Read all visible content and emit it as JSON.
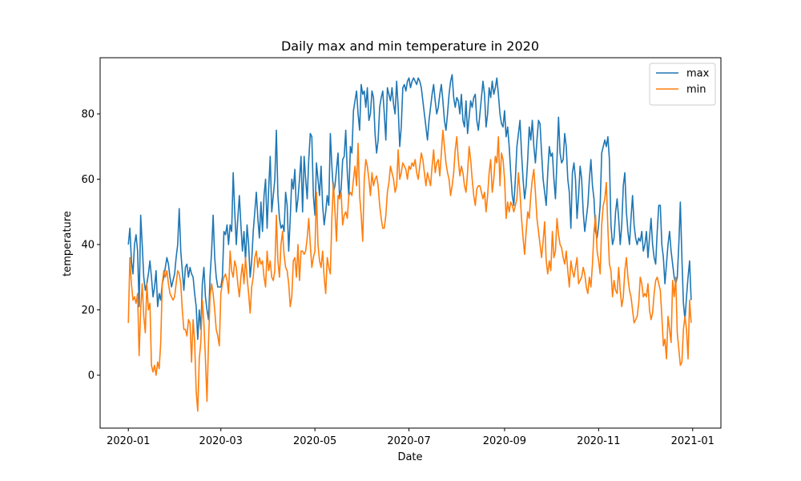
{
  "chart_data": {
    "type": "line",
    "title": "Daily max and min temperature in 2020",
    "xlabel": "Date",
    "ylabel": "temperature",
    "legend": "upper right",
    "x": [
      0,
      1,
      2,
      3,
      4,
      5,
      6,
      7,
      8,
      9,
      10,
      11,
      12,
      13,
      14,
      15,
      16,
      17,
      18,
      19,
      20,
      21,
      22,
      23,
      24,
      25,
      26,
      27,
      28,
      29,
      30,
      31,
      32,
      33,
      34,
      35,
      36,
      37,
      38,
      39,
      40,
      41,
      42,
      43,
      44,
      45,
      46,
      47,
      48,
      49,
      50,
      51,
      52,
      53,
      54,
      55,
      56,
      57,
      58,
      59,
      60,
      61,
      62,
      63,
      64,
      65,
      66,
      67,
      68,
      69,
      70,
      71,
      72,
      73,
      74,
      75,
      76,
      77,
      78,
      79,
      80,
      81,
      82,
      83,
      84,
      85,
      86,
      87,
      88,
      89,
      90,
      91,
      92,
      93,
      94,
      95,
      96,
      97,
      98,
      99,
      100,
      101,
      102,
      103,
      104,
      105,
      106,
      107,
      108,
      109,
      110,
      111,
      112,
      113,
      114,
      115,
      116,
      117,
      118,
      119,
      120,
      121,
      122,
      123,
      124,
      125,
      126,
      127,
      128,
      129,
      130,
      131,
      132,
      133,
      134,
      135,
      136,
      137,
      138,
      139,
      140,
      141,
      142,
      143,
      144,
      145,
      146,
      147,
      148,
      149,
      150,
      151,
      152,
      153,
      154,
      155,
      156,
      157,
      158,
      159,
      160,
      161,
      162,
      163,
      164,
      165,
      166,
      167,
      168,
      169,
      170,
      171,
      172,
      173,
      174,
      175,
      176,
      177,
      178,
      179,
      180,
      181,
      182,
      183,
      184,
      185,
      186,
      187,
      188,
      189,
      190,
      191,
      192,
      193,
      194,
      195,
      196,
      197,
      198,
      199,
      200,
      201,
      202,
      203,
      204,
      205,
      206,
      207,
      208,
      209,
      210,
      211,
      212,
      213,
      214,
      215,
      216,
      217,
      218,
      219,
      220,
      221,
      222,
      223,
      224,
      225,
      226,
      227,
      228,
      229,
      230,
      231,
      232,
      233,
      234,
      235,
      236,
      237,
      238,
      239,
      240,
      241,
      242,
      243,
      244,
      245,
      246,
      247,
      248,
      249,
      250,
      251,
      252,
      253,
      254,
      255,
      256,
      257,
      258,
      259,
      260,
      261,
      262,
      263,
      264,
      265,
      266,
      267,
      268,
      269,
      270,
      271,
      272,
      273,
      274,
      275,
      276,
      277,
      278,
      279,
      280,
      281,
      282,
      283,
      284,
      285,
      286,
      287,
      288,
      289,
      290,
      291,
      292,
      293,
      294,
      295,
      296,
      297,
      298,
      299,
      300,
      301,
      302,
      303,
      304,
      305,
      306,
      307,
      308,
      309,
      310,
      311,
      312,
      313,
      314,
      315,
      316,
      317,
      318,
      319,
      320,
      321,
      322,
      323,
      324,
      325,
      326,
      327,
      328,
      329,
      330,
      331,
      332,
      333,
      334,
      335,
      336,
      337,
      338,
      339,
      340,
      341,
      342,
      343,
      344,
      345,
      346,
      347,
      348,
      349,
      350,
      351,
      352,
      353,
      354,
      355,
      356,
      357,
      358,
      359,
      360,
      361,
      362,
      363,
      364,
      365
    ],
    "series": [
      {
        "name": "max",
        "color": "#1f77b4",
        "values": [
          40,
          45,
          35,
          31,
          40,
          43,
          38,
          21,
          49,
          40,
          30,
          26,
          28,
          31,
          35,
          30,
          24,
          27,
          32,
          21,
          25,
          23,
          28,
          30,
          33,
          36,
          34,
          30,
          27,
          29,
          31,
          36,
          40,
          51,
          38,
          32,
          26,
          33,
          34,
          30,
          33,
          31,
          30,
          25,
          21,
          11,
          20,
          14,
          28,
          33,
          24,
          20,
          17,
          30,
          38,
          49,
          36,
          30,
          27,
          27,
          27,
          30,
          44,
          43,
          46,
          40,
          46,
          44,
          62,
          50,
          40,
          48,
          55,
          46,
          38,
          44,
          35,
          46,
          40,
          30,
          35,
          44,
          50,
          56,
          48,
          42,
          53,
          44,
          55,
          60,
          45,
          57,
          67,
          50,
          55,
          60,
          75,
          55,
          48,
          45,
          46,
          44,
          56,
          52,
          38,
          48,
          60,
          57,
          63,
          50,
          54,
          60,
          67,
          50,
          67,
          60,
          54,
          66,
          74,
          73,
          55,
          49,
          65,
          60,
          55,
          64,
          52,
          46,
          50,
          55,
          52,
          74,
          64,
          56,
          58,
          63,
          68,
          54,
          57,
          66,
          67,
          75,
          62,
          55,
          70,
          68,
          81,
          84,
          87,
          80,
          75,
          89,
          86,
          87,
          82,
          88,
          78,
          80,
          87,
          85,
          74,
          68,
          72,
          82,
          85,
          87,
          80,
          72,
          88,
          86,
          84,
          88,
          83,
          80,
          90,
          82,
          70,
          76,
          88,
          89,
          87,
          90,
          91,
          88,
          90,
          91,
          90,
          89,
          91,
          90,
          88,
          84,
          80,
          76,
          72,
          78,
          82,
          86,
          89,
          84,
          80,
          82,
          86,
          89,
          84,
          78,
          75,
          80,
          86,
          90,
          92,
          85,
          82,
          85,
          84,
          80,
          86,
          78,
          76,
          84,
          74,
          79,
          84,
          82,
          85,
          86,
          78,
          75,
          80,
          85,
          90,
          86,
          76,
          80,
          88,
          85,
          90,
          86,
          88,
          91,
          86,
          80,
          77,
          76,
          81,
          73,
          76,
          70,
          62,
          55,
          52,
          60,
          70,
          74,
          78,
          68,
          60,
          54,
          58,
          66,
          76,
          72,
          78,
          70,
          65,
          72,
          78,
          77,
          68,
          60,
          56,
          52,
          62,
          70,
          67,
          68,
          60,
          54,
          66,
          79,
          68,
          65,
          66,
          74,
          70,
          60,
          56,
          45,
          62,
          65,
          60,
          48,
          55,
          64,
          60,
          50,
          44,
          48,
          52,
          60,
          66,
          58,
          54,
          44,
          42,
          46,
          52,
          68,
          70,
          72,
          70,
          73,
          66,
          46,
          40,
          42,
          50,
          54,
          48,
          40,
          46,
          58,
          62,
          50,
          44,
          40,
          48,
          55,
          46,
          42,
          40,
          42,
          41,
          44,
          38,
          40,
          44,
          36,
          42,
          48,
          40,
          36,
          34,
          44,
          52,
          52,
          40,
          36,
          28,
          34,
          40,
          44,
          38,
          34,
          30,
          28,
          30,
          40,
          53,
          36,
          22,
          17,
          24,
          30,
          35,
          23
        ]
      },
      {
        "name": "min",
        "color": "#ff7f0e",
        "values": [
          16,
          36,
          28,
          23,
          24,
          22,
          25,
          6,
          20,
          28,
          18,
          13,
          28,
          20,
          22,
          3,
          1,
          3,
          0,
          4,
          2,
          10,
          28,
          32,
          30,
          32,
          28,
          25,
          24,
          23,
          24,
          28,
          32,
          31,
          28,
          20,
          14,
          14,
          12,
          17,
          16,
          4,
          17,
          10,
          -5,
          -11,
          5,
          10,
          23,
          16,
          5,
          -8,
          10,
          24,
          28,
          25,
          20,
          14,
          12,
          9,
          25,
          28,
          30,
          31,
          29,
          25,
          38,
          32,
          30,
          35,
          33,
          28,
          24,
          30,
          34,
          28,
          36,
          30,
          25,
          19,
          27,
          30,
          36,
          38,
          33,
          36,
          34,
          35,
          30,
          27,
          38,
          32,
          35,
          30,
          29,
          32,
          49,
          35,
          30,
          40,
          44,
          37,
          33,
          32,
          28,
          21,
          24,
          35,
          36,
          30,
          40,
          29,
          38,
          38,
          37,
          38,
          42,
          48,
          40,
          33,
          36,
          38,
          56,
          40,
          35,
          33,
          38,
          30,
          25,
          36,
          33,
          31,
          48,
          59,
          50,
          41,
          55,
          54,
          56,
          46,
          49,
          50,
          48,
          55,
          56,
          55,
          60,
          64,
          58,
          71,
          55,
          49,
          41,
          60,
          66,
          64,
          60,
          55,
          62,
          58,
          60,
          61,
          58,
          52,
          48,
          45,
          45,
          49,
          56,
          59,
          64,
          62,
          60,
          56,
          58,
          69,
          60,
          62,
          65,
          64,
          63,
          60,
          64,
          63,
          65,
          64,
          66,
          62,
          60,
          64,
          68,
          66,
          62,
          58,
          62,
          60,
          58,
          64,
          69,
          62,
          65,
          66,
          61,
          68,
          75,
          70,
          65,
          62,
          60,
          55,
          58,
          62,
          69,
          73,
          66,
          61,
          64,
          62,
          58,
          56,
          62,
          70,
          66,
          60,
          55,
          52,
          57,
          58,
          58,
          56,
          54,
          56,
          50,
          55,
          62,
          66,
          56,
          60,
          67,
          65,
          73,
          58,
          68,
          66,
          60,
          48,
          53,
          50,
          53,
          52,
          50,
          52,
          54,
          62,
          56,
          48,
          42,
          37,
          44,
          50,
          48,
          55,
          60,
          63,
          56,
          48,
          44,
          40,
          36,
          41,
          47,
          35,
          31,
          35,
          32,
          44,
          36,
          38,
          48,
          43,
          40,
          39,
          36,
          34,
          38,
          32,
          27,
          35,
          32,
          30,
          33,
          36,
          28,
          29,
          30,
          33,
          31,
          27,
          25,
          30,
          27,
          34,
          44,
          49,
          38,
          35,
          31,
          46,
          52,
          54,
          59,
          45,
          34,
          32,
          24,
          29,
          26,
          25,
          33,
          26,
          21,
          24,
          32,
          36,
          30,
          26,
          24,
          20,
          16,
          17,
          18,
          22,
          30,
          28,
          24,
          25,
          24,
          28,
          20,
          17,
          19,
          25,
          29,
          30,
          28,
          26,
          18,
          9,
          11,
          5,
          18,
          14,
          10,
          29,
          24,
          30,
          13,
          8,
          3,
          4,
          14,
          18,
          14,
          5,
          23,
          16
        ]
      }
    ],
    "xlim": [
      -18.3,
      384.3
    ],
    "xticks": [
      {
        "value": 0,
        "label": "2020-01"
      },
      {
        "value": 60,
        "label": "2020-03"
      },
      {
        "value": 121,
        "label": "2020-05"
      },
      {
        "value": 182,
        "label": "2020-07"
      },
      {
        "value": 244,
        "label": "2020-09"
      },
      {
        "value": 305,
        "label": "2020-11"
      },
      {
        "value": 366,
        "label": "2021-01"
      }
    ],
    "ylim": [
      -16.2,
      97.2
    ],
    "yticks": [
      0,
      20,
      40,
      60,
      80
    ]
  }
}
